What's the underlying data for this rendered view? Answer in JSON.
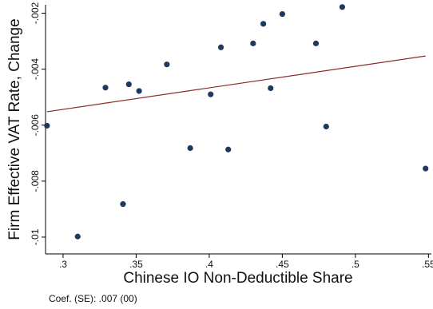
{
  "chart_data": {
    "type": "scatter",
    "title": "",
    "xlabel": "Chinese IO Non-Deductible Share",
    "ylabel": "Firm Effective VAT Rate, Change",
    "note": "Coef. (SE): .007 (00)",
    "xlim": [
      0.288,
      0.552
    ],
    "ylim": [
      -0.0106,
      -0.0017
    ],
    "x_ticks": [
      0.3,
      0.35,
      0.4,
      0.45,
      0.5,
      0.55
    ],
    "x_tick_labels": [
      ".3",
      ".35",
      ".4",
      ".45",
      ".5",
      ".55"
    ],
    "y_ticks": [
      -0.01,
      -0.008,
      -0.006,
      -0.004,
      -0.002
    ],
    "y_tick_labels": [
      "-.01",
      "-.008",
      "-.006",
      "-.004",
      "-.002"
    ],
    "grid": false,
    "legend": "none",
    "points": [
      {
        "x": 0.289,
        "y": -0.00602
      },
      {
        "x": 0.31,
        "y": -0.00998
      },
      {
        "x": 0.329,
        "y": -0.00466
      },
      {
        "x": 0.341,
        "y": -0.00882
      },
      {
        "x": 0.345,
        "y": -0.00454
      },
      {
        "x": 0.352,
        "y": -0.00478
      },
      {
        "x": 0.371,
        "y": -0.00383
      },
      {
        "x": 0.387,
        "y": -0.00682
      },
      {
        "x": 0.401,
        "y": -0.0049
      },
      {
        "x": 0.408,
        "y": -0.00322
      },
      {
        "x": 0.413,
        "y": -0.00687
      },
      {
        "x": 0.43,
        "y": -0.00308
      },
      {
        "x": 0.437,
        "y": -0.00238
      },
      {
        "x": 0.442,
        "y": -0.00468
      },
      {
        "x": 0.45,
        "y": -0.00203
      },
      {
        "x": 0.473,
        "y": -0.00308
      },
      {
        "x": 0.48,
        "y": -0.00605
      },
      {
        "x": 0.491,
        "y": -0.00178
      },
      {
        "x": 0.548,
        "y": -0.00755
      }
    ],
    "fit_line": {
      "x": [
        0.289,
        0.548
      ],
      "y": [
        -0.00552,
        -0.00353
      ]
    },
    "colors": {
      "point": "#1b3a5c",
      "fit_line": "#8b2a2a",
      "axis": "#000000"
    }
  }
}
